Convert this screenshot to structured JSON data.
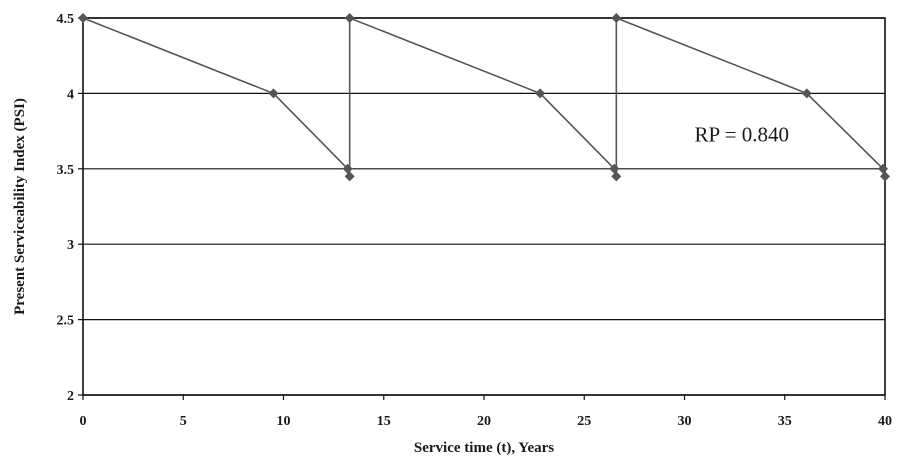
{
  "chart_data": {
    "type": "line",
    "title": "",
    "xlabel": "Service  time (t), Years",
    "ylabel": "Present Serviceability Index (PSI)",
    "xlim": [
      0,
      40
    ],
    "ylim": [
      2,
      4.5
    ],
    "xticks": [
      0,
      5,
      10,
      15,
      20,
      25,
      30,
      35,
      40
    ],
    "yticks": [
      2,
      2.5,
      3,
      3.5,
      4,
      4.5
    ],
    "ytick_labels": [
      "2",
      "2.5",
      "3",
      "3.5",
      "4",
      "4.5"
    ],
    "grid": "horizontal",
    "series": [
      {
        "name": "",
        "color": "#555555",
        "marker": "diamond",
        "x": [
          0,
          9.5,
          13.2,
          13.3,
          13.3,
          22.8,
          26.5,
          26.6,
          26.6,
          36.1,
          39.9,
          40.0
        ],
        "y": [
          4.5,
          4.0,
          3.5,
          3.45,
          4.5,
          4.0,
          3.5,
          3.45,
          4.5,
          4.0,
          3.5,
          3.45
        ]
      }
    ],
    "annotations": [
      {
        "text": "RP = 0.840",
        "x": 30.5,
        "y": 3.68
      }
    ]
  }
}
